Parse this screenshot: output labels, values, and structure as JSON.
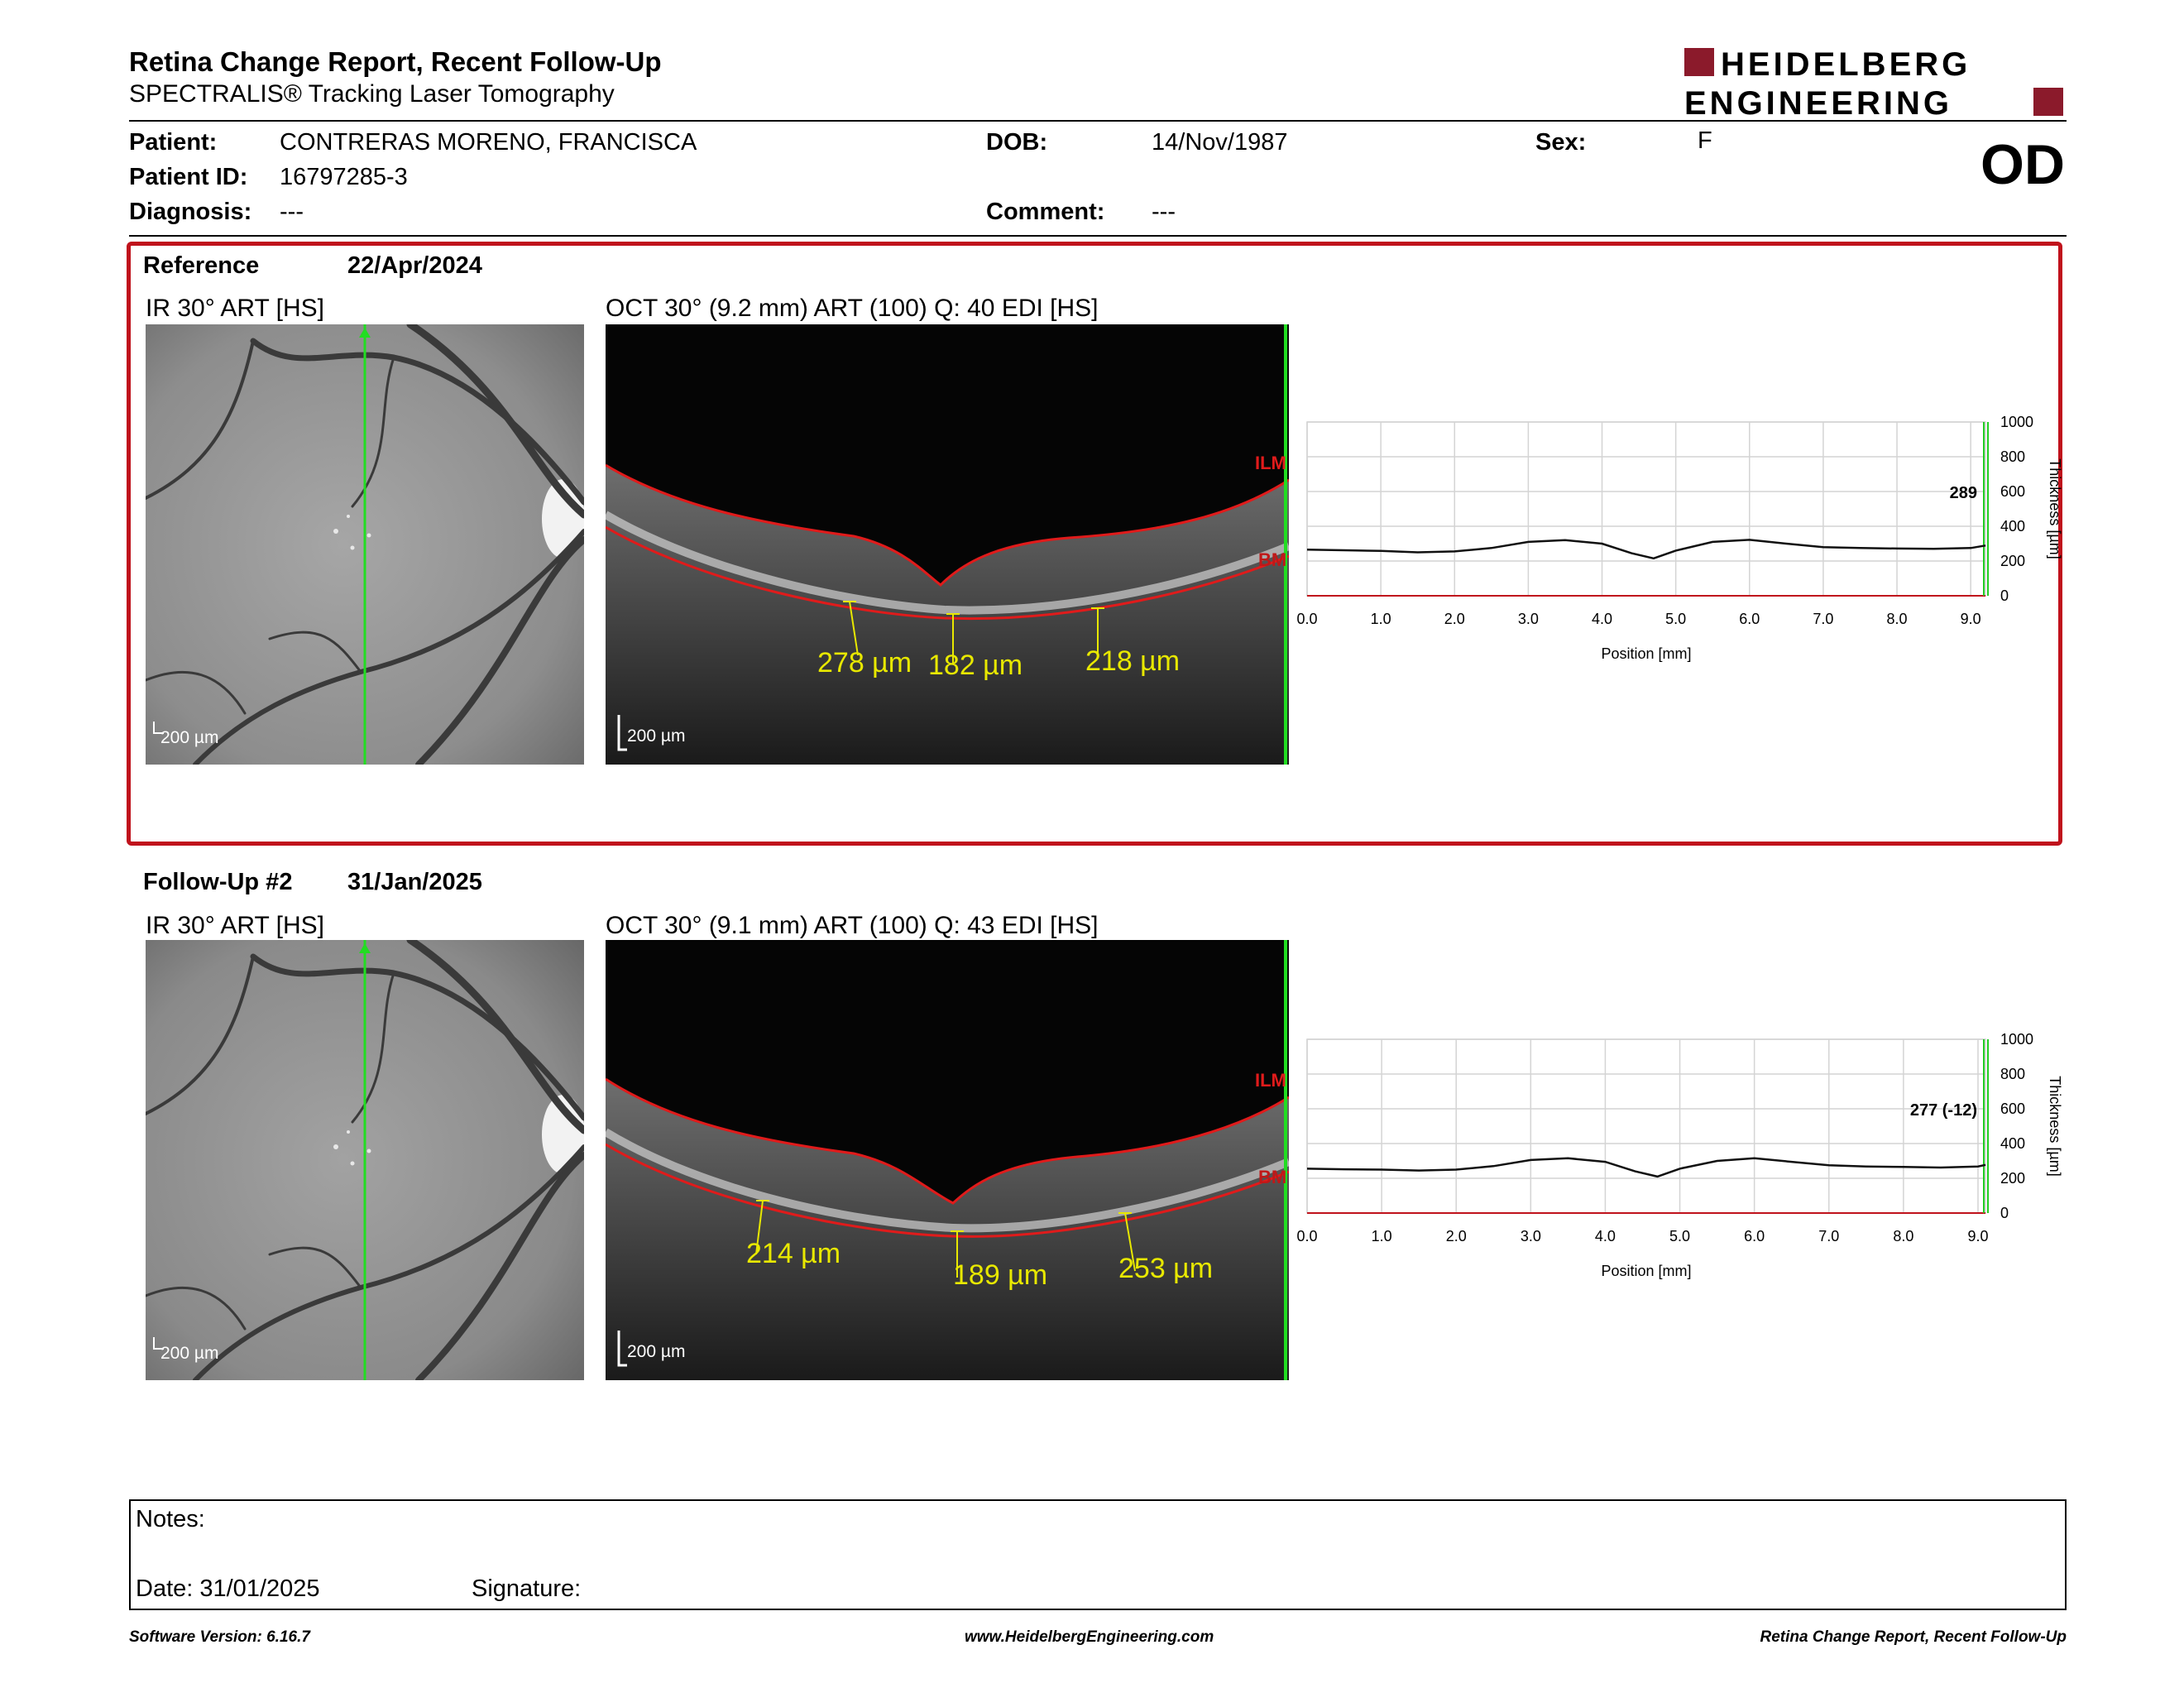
{
  "header": {
    "title": "Retina Change Report, Recent Follow-Up",
    "subtitle": "SPECTRALIS® Tracking Laser Tomography",
    "logo_line1": "HEIDELBERG",
    "logo_line2": "ENGINEERING"
  },
  "patient": {
    "patient_label": "Patient:",
    "patient_value": "CONTRERAS MORENO, FRANCISCA",
    "id_label": "Patient ID:",
    "id_value": "16797285-3",
    "diagnosis_label": "Diagnosis:",
    "diagnosis_value": "---",
    "dob_label": "DOB:",
    "dob_value": "14/Nov/1987",
    "comment_label": "Comment:",
    "comment_value": "---",
    "sex_label": "Sex:",
    "sex_value": "F",
    "eye": "OD"
  },
  "reference": {
    "label": "Reference",
    "date": "22/Apr/2024",
    "ir_caption": "IR 30° ART [HS]",
    "oct_caption": "OCT 30° (9.2 mm) ART (100) Q: 40 EDI [HS]",
    "ir_scale": "200 µm",
    "oct_scale": "200 µm",
    "layer_top": "ILM",
    "layer_bottom": "BM",
    "measurements": [
      "278 µm",
      "182 µm",
      "218 µm"
    ]
  },
  "followup": {
    "label": "Follow-Up #2",
    "date": "31/Jan/2025",
    "ir_caption": "IR 30° ART [HS]",
    "oct_caption": "OCT 30° (9.1 mm) ART (100) Q: 43 EDI [HS]",
    "ir_scale": "200 µm",
    "oct_scale": "200 µm",
    "layer_top": "ILM",
    "layer_bottom": "BM",
    "measurements": [
      "214 µm",
      "189 µm",
      "253 µm"
    ]
  },
  "chart_data": [
    {
      "type": "line",
      "xlabel": "Position [mm]",
      "ylabel": "Thickness [µm]",
      "x_ticks": [
        "0.0",
        "1.0",
        "2.0",
        "3.0",
        "4.0",
        "5.0",
        "6.0",
        "7.0",
        "8.0",
        "9.0"
      ],
      "y_ticks": [
        "0",
        "200",
        "400",
        "600",
        "800",
        "1000"
      ],
      "xlim": [
        0,
        9.2
      ],
      "ylim": [
        0,
        1000
      ],
      "grid": true,
      "current_value": "289",
      "x": [
        0,
        0.5,
        1.0,
        1.5,
        2.0,
        2.5,
        3.0,
        3.5,
        4.0,
        4.4,
        4.7,
        5.0,
        5.5,
        6.0,
        6.5,
        7.0,
        7.5,
        8.0,
        8.5,
        9.0,
        9.2
      ],
      "y": [
        265,
        262,
        258,
        250,
        255,
        275,
        310,
        320,
        300,
        245,
        215,
        260,
        310,
        322,
        300,
        280,
        275,
        272,
        270,
        275,
        289
      ]
    },
    {
      "type": "line",
      "xlabel": "Position [mm]",
      "ylabel": "Thickness [µm]",
      "x_ticks": [
        "0.0",
        "1.0",
        "2.0",
        "3.0",
        "4.0",
        "5.0",
        "6.0",
        "7.0",
        "8.0",
        "9.0"
      ],
      "y_ticks": [
        "0",
        "200",
        "400",
        "600",
        "800",
        "1000"
      ],
      "xlim": [
        0,
        9.1
      ],
      "ylim": [
        0,
        1000
      ],
      "grid": true,
      "current_value": "277 (-12)",
      "x": [
        0,
        0.5,
        1.0,
        1.5,
        2.0,
        2.5,
        3.0,
        3.5,
        4.0,
        4.4,
        4.7,
        5.0,
        5.5,
        6.0,
        6.5,
        7.0,
        7.5,
        8.0,
        8.5,
        9.0,
        9.1
      ],
      "y": [
        255,
        252,
        250,
        245,
        250,
        270,
        305,
        315,
        295,
        240,
        210,
        255,
        300,
        315,
        295,
        275,
        268,
        265,
        262,
        268,
        277
      ]
    }
  ],
  "notes": {
    "label": "Notes:",
    "date_label": "Date: 31/01/2025",
    "signature_label": "Signature:"
  },
  "footer": {
    "left": "Software Version: 6.16.7",
    "center": "www.HeidelbergEngineering.com",
    "right": "Retina Change Report, Recent Follow-Up"
  }
}
